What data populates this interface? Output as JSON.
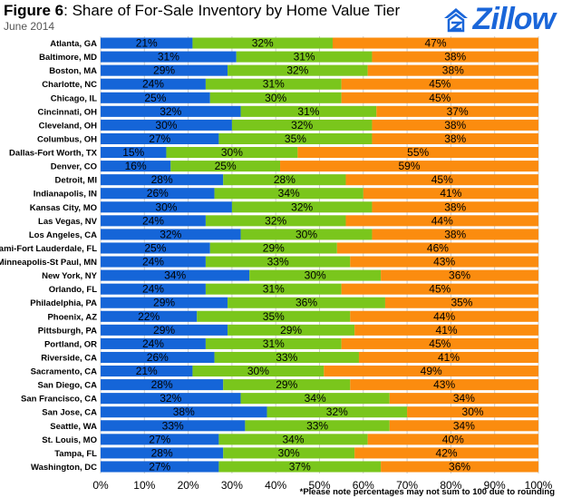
{
  "header": {
    "title_bold": "Figure 6",
    "title_rest": ": Share of For-Sale Inventory by Home Value Tier",
    "subtitle": "June 2014"
  },
  "logo": {
    "text": "Zillow",
    "icon": "zillow-house-icon"
  },
  "footnote": "*Please note percentages may not sum to 100 due to rounding",
  "colors": {
    "bottom": "#1565d8",
    "middle": "#7ac61c",
    "top": "#fb8c0f",
    "grid": "#cccccc"
  },
  "chart_data": {
    "type": "bar",
    "orientation": "horizontal",
    "stacked": true,
    "normalized": true,
    "xlim": [
      0,
      100
    ],
    "xticks": [
      "0%",
      "10%",
      "20%",
      "30%",
      "40%",
      "50%",
      "60%",
      "70%",
      "80%",
      "90%",
      "100%"
    ],
    "grid": true,
    "categories": [
      "Atlanta, GA",
      "Baltimore, MD",
      "Boston, MA",
      "Charlotte, NC",
      "Chicago, IL",
      "Cincinnati, OH",
      "Cleveland, OH",
      "Columbus, OH",
      "Dallas-Fort Worth, TX",
      "Denver, CO",
      "Detroit, MI",
      "Indianapolis, IN",
      "Kansas City, MO",
      "Las Vegas, NV",
      "Los Angeles, CA",
      "Miami-Fort Lauderdale, FL",
      "Minneapolis-St Paul, MN",
      "New York, NY",
      "Orlando, FL",
      "Philadelphia, PA",
      "Phoenix, AZ",
      "Pittsburgh, PA",
      "Portland, OR",
      "Riverside, CA",
      "Sacramento, CA",
      "San Diego, CA",
      "San Francisco, CA",
      "San Jose, CA",
      "Seattle, WA",
      "St. Louis, MO",
      "Tampa, FL",
      "Washington, DC"
    ],
    "series": [
      {
        "values": [
          21,
          31,
          29,
          24,
          25,
          32,
          30,
          27,
          15,
          16,
          28,
          26,
          30,
          24,
          32,
          25,
          24,
          34,
          24,
          29,
          22,
          29,
          24,
          26,
          21,
          28,
          32,
          38,
          33,
          27,
          28,
          27
        ]
      },
      {
        "values": [
          32,
          31,
          32,
          31,
          30,
          31,
          32,
          35,
          30,
          25,
          28,
          34,
          32,
          32,
          30,
          29,
          33,
          30,
          31,
          36,
          35,
          29,
          31,
          33,
          30,
          29,
          34,
          32,
          33,
          34,
          30,
          37
        ]
      },
      {
        "values": [
          47,
          38,
          38,
          45,
          45,
          37,
          38,
          38,
          55,
          59,
          45,
          41,
          38,
          44,
          38,
          46,
          43,
          36,
          45,
          35,
          44,
          41,
          45,
          41,
          49,
          43,
          34,
          30,
          34,
          40,
          42,
          36
        ]
      }
    ]
  }
}
